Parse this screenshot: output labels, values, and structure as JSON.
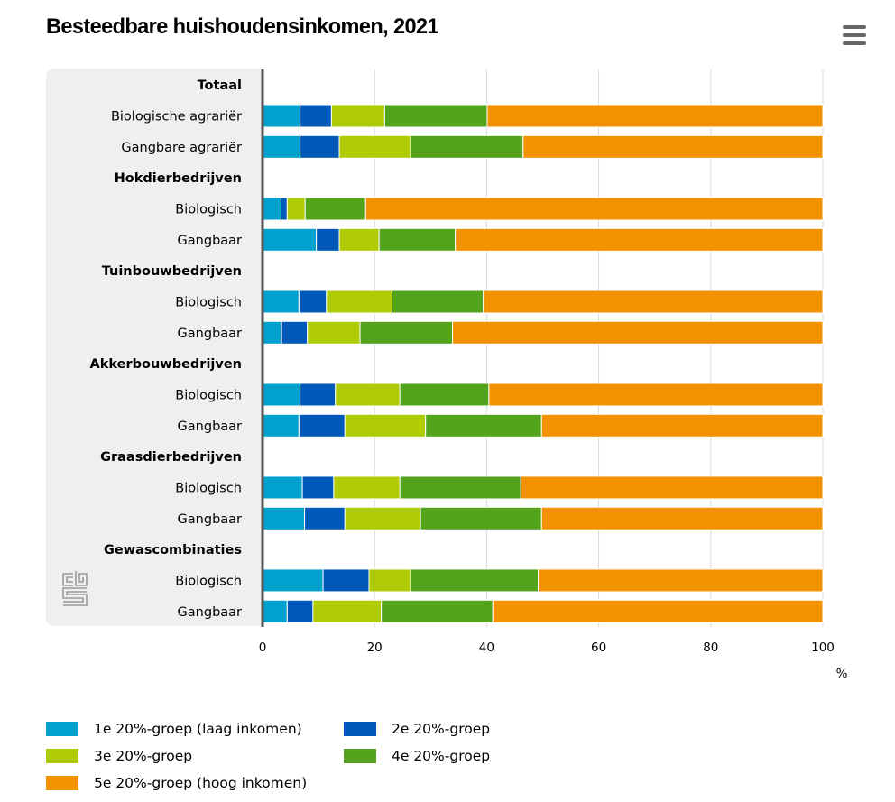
{
  "header": {
    "title": "Besteedbare huishoudensinkomen, 2021",
    "menu_icon": "hamburger-menu-icon"
  },
  "chart_data": {
    "type": "bar",
    "orientation": "horizontal",
    "stacked": true,
    "title": "Besteedbare huishoudensinkomen, 2021",
    "xlabel": "%",
    "ylabel": "",
    "xlim": [
      0,
      100
    ],
    "xticks": [
      "0",
      "20",
      "40",
      "60",
      "80",
      "100"
    ],
    "grid": true,
    "legend_position": "bottom-left",
    "rows": [
      {
        "label": "Totaal",
        "group": true
      },
      {
        "label": "Biologische agrariër",
        "group": false,
        "values": [
          6.7,
          5.6,
          9.5,
          18.3,
          59.9
        ]
      },
      {
        "label": "Gangbare agrariër",
        "group": false,
        "values": [
          6.7,
          7.0,
          12.7,
          20.1,
          53.5
        ]
      },
      {
        "label": "Hokdierbedrijven",
        "group": true
      },
      {
        "label": "Biologisch",
        "group": false,
        "values": [
          3.3,
          1.1,
          3.2,
          10.8,
          81.6
        ]
      },
      {
        "label": "Gangbaar",
        "group": false,
        "values": [
          9.6,
          4.1,
          7.1,
          13.6,
          65.6
        ]
      },
      {
        "label": "Tuinbouwbedrijven",
        "group": true
      },
      {
        "label": "Biologisch",
        "group": false,
        "values": [
          6.5,
          4.9,
          11.7,
          16.3,
          60.6
        ]
      },
      {
        "label": "Gangbaar",
        "group": false,
        "values": [
          3.4,
          4.6,
          9.4,
          16.5,
          66.1
        ]
      },
      {
        "label": "Akkerbouwbedrijven",
        "group": true
      },
      {
        "label": "Biologisch",
        "group": false,
        "values": [
          6.7,
          6.3,
          11.5,
          15.9,
          59.6
        ]
      },
      {
        "label": "Gangbaar",
        "group": false,
        "values": [
          6.5,
          8.2,
          14.4,
          20.7,
          50.2
        ]
      },
      {
        "label": "Graasdierbedrijven",
        "group": true
      },
      {
        "label": "Biologisch",
        "group": false,
        "values": [
          7.1,
          5.6,
          11.8,
          21.6,
          53.9
        ]
      },
      {
        "label": "Gangbaar",
        "group": false,
        "values": [
          7.5,
          7.2,
          13.5,
          21.6,
          50.2
        ]
      },
      {
        "label": "Gewascombinaties",
        "group": true
      },
      {
        "label": "Biologisch",
        "group": false,
        "values": [
          10.8,
          8.2,
          7.4,
          22.8,
          50.8
        ]
      },
      {
        "label": "Gangbaar",
        "group": false,
        "values": [
          4.4,
          4.6,
          12.2,
          19.9,
          58.9
        ]
      }
    ],
    "series": [
      {
        "name": "1e 20%-groep (laag inkomen)",
        "color": "#00a1cd"
      },
      {
        "name": "2e 20%-groep",
        "color": "#0058b8"
      },
      {
        "name": "3e 20%-groep",
        "color": "#afcb05"
      },
      {
        "name": "4e 20%-groep",
        "color": "#53a31d"
      },
      {
        "name": "5e 20%-groep (hoog inkomen)",
        "color": "#f39200"
      }
    ]
  },
  "legend": {
    "items": [
      {
        "label": "1e 20%-groep (laag inkomen)",
        "color": "#00a1cd"
      },
      {
        "label": "2e 20%-groep",
        "color": "#0058b8"
      },
      {
        "label": "3e 20%-groep",
        "color": "#afcb05"
      },
      {
        "label": "4e 20%-groep",
        "color": "#53a31d"
      },
      {
        "label": "5e 20%-groep (hoog inkomen)",
        "color": "#f39200"
      }
    ]
  },
  "branding": {
    "logo": "cbs-logo"
  }
}
